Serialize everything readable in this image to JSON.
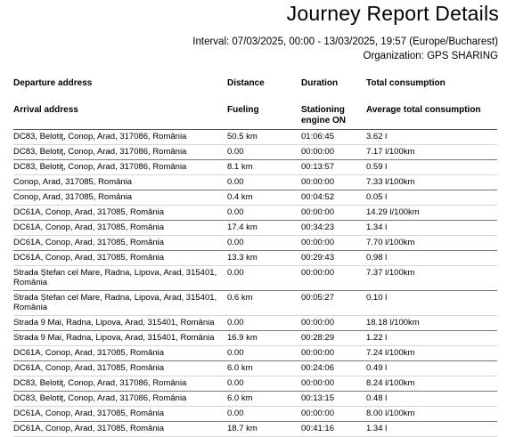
{
  "title": "Journey Report Details",
  "interval_label": "Interval:",
  "interval_value": "07/03/2025, 00:00 - 13/03/2025, 19:57 (Europe/Bucharest)",
  "organization_label": "Organization:",
  "organization_value": "GPS SHARING",
  "columns_top": {
    "address": "Departure address",
    "distance": "Distance",
    "duration": "Duration",
    "consumption": "Total consumption"
  },
  "columns_bottom": {
    "address": "Arrival address",
    "distance": "Fueling",
    "duration": "Stationing engine ON",
    "consumption": "Average total consumption"
  },
  "rows": [
    {
      "address": "DC83, Belotiţ, Conop, Arad, 317086, România",
      "distance": "50.5 km",
      "duration": "01:06:45",
      "consumption": "3.62 l"
    },
    {
      "address": "DC83, Belotiţ, Conop, Arad, 317086, România",
      "distance": "0.00",
      "duration": "00:00:00",
      "consumption": "7.17 l/100km"
    },
    {
      "address": "DC83, Belotiţ, Conop, Arad, 317086, România",
      "distance": "8.1 km",
      "duration": "00:13:57",
      "consumption": "0.59 l"
    },
    {
      "address": "Conop, Arad, 317085, România",
      "distance": "0.00",
      "duration": "00:00:00",
      "consumption": "7.33 l/100km"
    },
    {
      "address": "Conop, Arad, 317085, România",
      "distance": "0.4 km",
      "duration": "00:04:52",
      "consumption": "0.05 l"
    },
    {
      "address": "DC61A, Conop, Arad, 317085, România",
      "distance": "0.00",
      "duration": "00:00:00",
      "consumption": "14.29 l/100km"
    },
    {
      "address": "DC61A, Conop, Arad, 317085, România",
      "distance": "17.4 km",
      "duration": "00:34:23",
      "consumption": "1.34 l"
    },
    {
      "address": "DC61A, Conop, Arad, 317085, România",
      "distance": "0.00",
      "duration": "00:00:00",
      "consumption": "7.70 l/100km"
    },
    {
      "address": "DC61A, Conop, Arad, 317085, România",
      "distance": "13.3 km",
      "duration": "00:29:43",
      "consumption": "0.98 l"
    },
    {
      "address": "Strada Ștefan cel Mare, Radna, Lipova, Arad, 315401, România",
      "distance": "0.00",
      "duration": "00:00:00",
      "consumption": "7.37 l/100km"
    },
    {
      "address": "Strada Ștefan cel Mare, Radna, Lipova, Arad, 315401, România",
      "distance": "0.6 km",
      "duration": "00:05:27",
      "consumption": "0.10 l"
    },
    {
      "address": "Strada 9 Mai, Radna, Lipova, Arad, 315401, România",
      "distance": "0.00",
      "duration": "00:00:00",
      "consumption": "18.18 l/100km"
    },
    {
      "address": "Strada 9 Mai, Radna, Lipova, Arad, 315401, România",
      "distance": "16.9 km",
      "duration": "00:28:29",
      "consumption": "1.22 l"
    },
    {
      "address": "DC61A, Conop, Arad, 317085, România",
      "distance": "0.00",
      "duration": "00:00:00",
      "consumption": "7.24 l/100km"
    },
    {
      "address": "DC61A, Conop, Arad, 317085, România",
      "distance": "6.0 km",
      "duration": "00:24:06",
      "consumption": "0.49 l"
    },
    {
      "address": "DC83, Belotiţ, Conop, Arad, 317086, România",
      "distance": "0.00",
      "duration": "00:00:00",
      "consumption": "8.24 l/100km"
    },
    {
      "address": "DC83, Belotiţ, Conop, Arad, 317086, România",
      "distance": "6.0 km",
      "duration": "00:13:15",
      "consumption": "0.48 l"
    },
    {
      "address": "DC61A, Conop, Arad, 317085, România",
      "distance": "0.00",
      "duration": "00:00:00",
      "consumption": "8.00 l/100km"
    },
    {
      "address": "DC61A, Conop, Arad, 317085, România",
      "distance": "18.7 km",
      "duration": "00:41:16",
      "consumption": "1.34 l"
    }
  ]
}
